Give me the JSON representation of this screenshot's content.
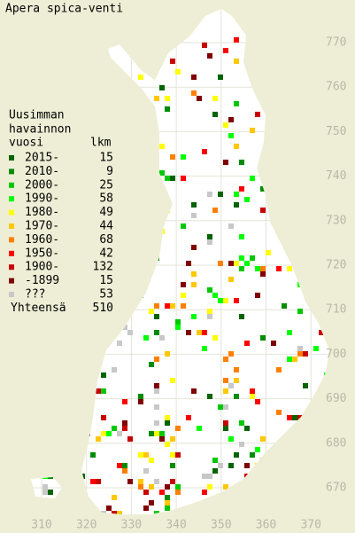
{
  "title": "Apera spica-venti",
  "legend": {
    "heading": [
      "Uusimman",
      "havainnon"
    ],
    "col_year": "vuosi",
    "col_count": "lkm",
    "items": [
      {
        "label": "2015-",
        "count": 15,
        "color": "#006400"
      },
      {
        "label": "2010-",
        "count": 9,
        "color": "#008c00"
      },
      {
        "label": "2000-",
        "count": 25,
        "color": "#00c800"
      },
      {
        "label": "1990-",
        "count": 58,
        "color": "#00ff00"
      },
      {
        "label": "1980-",
        "count": 49,
        "color": "#ffff00"
      },
      {
        "label": "1970-",
        "count": 44,
        "color": "#ffc800"
      },
      {
        "label": "1960-",
        "count": 68,
        "color": "#ff8000"
      },
      {
        "label": "1950-",
        "count": 42,
        "color": "#ff0000"
      },
      {
        "label": "1900-",
        "count": 132,
        "color": "#c80000"
      },
      {
        "label": "-1899",
        "count": 15,
        "color": "#800000"
      },
      {
        "label": "???",
        "count": 53,
        "color": "#c8c8c8"
      }
    ],
    "total_label": "Yhteensä",
    "total": 510
  },
  "y_labels": [
    770,
    760,
    750,
    740,
    730,
    720,
    710,
    700,
    690,
    680,
    670
  ],
  "x_labels": [
    310,
    320,
    330,
    340,
    350,
    360,
    370
  ]
}
